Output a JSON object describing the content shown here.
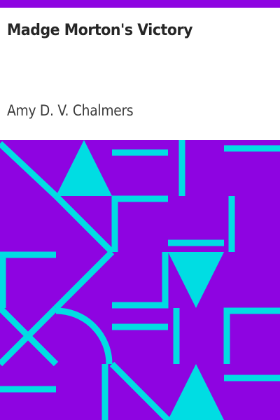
{
  "book": {
    "title": "Madge Morton's Victory",
    "author": "Amy D. V. Chalmers"
  },
  "colors": {
    "accent": "#8e04e1",
    "pattern": "#00dde3",
    "background": "#ffffff",
    "title_text": "#262626",
    "author_text": "#3a3a3a"
  }
}
